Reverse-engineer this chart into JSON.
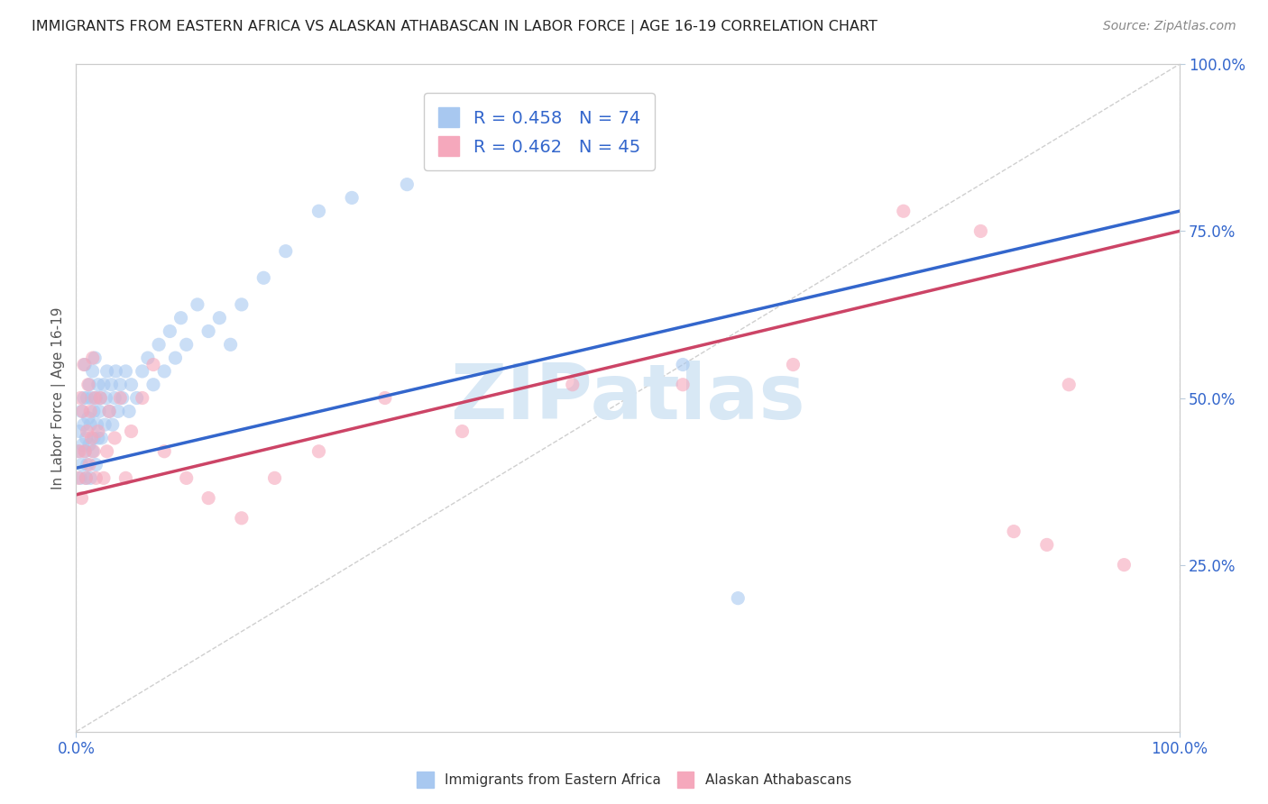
{
  "title": "IMMIGRANTS FROM EASTERN AFRICA VS ALASKAN ATHABASCAN IN LABOR FORCE | AGE 16-19 CORRELATION CHART",
  "source": "Source: ZipAtlas.com",
  "ylabel": "In Labor Force | Age 16-19",
  "xmin": 0.0,
  "xmax": 1.0,
  "ymin": 0.0,
  "ymax": 1.0,
  "blue_R": 0.458,
  "blue_N": 74,
  "pink_R": 0.462,
  "pink_N": 45,
  "blue_color": "#A8C8F0",
  "pink_color": "#F5A8BC",
  "blue_line_color": "#3366CC",
  "pink_line_color": "#CC4466",
  "diag_line_color": "#BBBBBB",
  "title_color": "#222222",
  "source_color": "#888888",
  "legend_text_color": "#3366CC",
  "watermark_text": "ZIPatlas",
  "watermark_color": "#D8E8F5",
  "background_color": "#FFFFFF",
  "blue_line_x0": 0.0,
  "blue_line_y0": 0.395,
  "blue_line_x1": 1.0,
  "blue_line_y1": 0.78,
  "pink_line_x0": 0.0,
  "pink_line_y0": 0.355,
  "pink_line_x1": 1.0,
  "pink_line_y1": 0.75,
  "blue_scatter_x": [
    0.002,
    0.003,
    0.004,
    0.005,
    0.005,
    0.006,
    0.007,
    0.007,
    0.008,
    0.008,
    0.009,
    0.009,
    0.01,
    0.01,
    0.011,
    0.012,
    0.012,
    0.013,
    0.013,
    0.014,
    0.015,
    0.015,
    0.016,
    0.016,
    0.017,
    0.018,
    0.018,
    0.019,
    0.02,
    0.02,
    0.021,
    0.022,
    0.023,
    0.025,
    0.026,
    0.027,
    0.028,
    0.03,
    0.032,
    0.033,
    0.035,
    0.036,
    0.038,
    0.04,
    0.042,
    0.045,
    0.048,
    0.05,
    0.055,
    0.06,
    0.065,
    0.07,
    0.075,
    0.08,
    0.085,
    0.09,
    0.095,
    0.1,
    0.11,
    0.12,
    0.13,
    0.14,
    0.15,
    0.17,
    0.19,
    0.22,
    0.25,
    0.3,
    0.35,
    0.4,
    0.45,
    0.5,
    0.55,
    0.6
  ],
  "blue_scatter_y": [
    0.42,
    0.45,
    0.38,
    0.4,
    0.48,
    0.43,
    0.46,
    0.5,
    0.42,
    0.55,
    0.38,
    0.44,
    0.5,
    0.4,
    0.47,
    0.43,
    0.52,
    0.46,
    0.38,
    0.5,
    0.54,
    0.42,
    0.48,
    0.44,
    0.56,
    0.5,
    0.4,
    0.46,
    0.52,
    0.44,
    0.48,
    0.5,
    0.44,
    0.52,
    0.46,
    0.5,
    0.54,
    0.48,
    0.52,
    0.46,
    0.5,
    0.54,
    0.48,
    0.52,
    0.5,
    0.54,
    0.48,
    0.52,
    0.5,
    0.54,
    0.56,
    0.52,
    0.58,
    0.54,
    0.6,
    0.56,
    0.62,
    0.58,
    0.64,
    0.6,
    0.62,
    0.58,
    0.64,
    0.68,
    0.72,
    0.78,
    0.8,
    0.82,
    0.85,
    0.88,
    0.88,
    0.92,
    0.55,
    0.2
  ],
  "pink_scatter_x": [
    0.002,
    0.003,
    0.004,
    0.005,
    0.006,
    0.007,
    0.008,
    0.009,
    0.01,
    0.011,
    0.012,
    0.013,
    0.014,
    0.015,
    0.016,
    0.017,
    0.018,
    0.02,
    0.022,
    0.025,
    0.028,
    0.03,
    0.035,
    0.04,
    0.045,
    0.05,
    0.06,
    0.07,
    0.08,
    0.1,
    0.12,
    0.15,
    0.18,
    0.22,
    0.28,
    0.35,
    0.45,
    0.55,
    0.65,
    0.75,
    0.82,
    0.85,
    0.88,
    0.9,
    0.95
  ],
  "pink_scatter_y": [
    0.38,
    0.42,
    0.5,
    0.35,
    0.48,
    0.55,
    0.42,
    0.38,
    0.45,
    0.52,
    0.4,
    0.48,
    0.44,
    0.56,
    0.42,
    0.5,
    0.38,
    0.45,
    0.5,
    0.38,
    0.42,
    0.48,
    0.44,
    0.5,
    0.38,
    0.45,
    0.5,
    0.55,
    0.42,
    0.38,
    0.35,
    0.32,
    0.38,
    0.42,
    0.5,
    0.45,
    0.52,
    0.52,
    0.55,
    0.78,
    0.75,
    0.3,
    0.28,
    0.52,
    0.25
  ]
}
